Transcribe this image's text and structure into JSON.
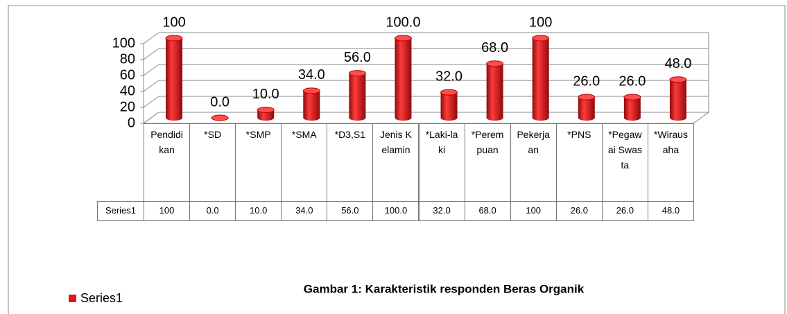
{
  "chart_data": {
    "type": "bar",
    "caption": "Gambar 1: Karakteristik responden Beras Organik",
    "categories": [
      "Pendidikan",
      "*SD",
      "*SMP",
      "*SMA",
      "*D3,S1",
      "Jenis Kelamin",
      "*Laki-laki",
      "*Perempuan",
      "Pekerjaan",
      "*PNS",
      "*Pegawai Swasta",
      "*Wirausaha"
    ],
    "series": [
      {
        "name": "Series1",
        "color": "#e0161b",
        "values": [
          100,
          0.0,
          10.0,
          34.0,
          56.0,
          100.0,
          32.0,
          68.0,
          100,
          26.0,
          26.0,
          48.0
        ],
        "value_labels": [
          "100",
          "0.0",
          "10.0",
          "34.0",
          "56.0",
          "100.0",
          "32.0",
          "68.0",
          "100",
          "26.0",
          "26.0",
          "48.0"
        ]
      }
    ],
    "ylim": [
      0,
      100
    ],
    "yticks": [
      0,
      20,
      40,
      60,
      80,
      100
    ],
    "grid": true,
    "legend": "bottom-left"
  }
}
